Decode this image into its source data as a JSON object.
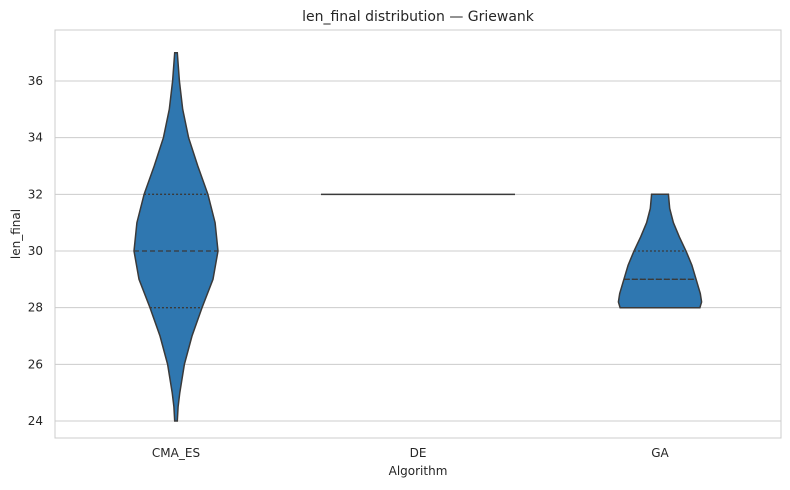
{
  "chart_data": {
    "type": "violin",
    "title": "len_final distribution — Griewank",
    "xlabel": "Algorithm",
    "ylabel": "len_final",
    "categories": [
      "CMA_ES",
      "DE",
      "GA"
    ],
    "ylim": [
      23.4,
      37.8
    ],
    "yticks": [
      24,
      26,
      28,
      30,
      32,
      34,
      36
    ],
    "grid": true,
    "colors": {
      "fill": "#2f77b0",
      "edge": "#3a3a3a",
      "grid": "#cccccc"
    },
    "violins": [
      {
        "category": "CMA_ES",
        "min": 24,
        "max": 37,
        "q1": 28,
        "median": 30,
        "q3": 32,
        "profile": [
          [
            24,
            0.03
          ],
          [
            24.5,
            0.05
          ],
          [
            25,
            0.09
          ],
          [
            26,
            0.2
          ],
          [
            27,
            0.38
          ],
          [
            28,
            0.62
          ],
          [
            29,
            0.88
          ],
          [
            30,
            1.0
          ],
          [
            31,
            0.93
          ],
          [
            32,
            0.76
          ],
          [
            33,
            0.52
          ],
          [
            34,
            0.3
          ],
          [
            35,
            0.16
          ],
          [
            36,
            0.08
          ],
          [
            37,
            0.03
          ]
        ]
      },
      {
        "category": "DE",
        "min": 32,
        "max": 32,
        "q1": 32,
        "median": 32,
        "q3": 32,
        "profile": []
      },
      {
        "category": "GA",
        "min": 28,
        "max": 32,
        "q1": 29,
        "median": 29,
        "q3": 30,
        "profile": [
          [
            28,
            0.95
          ],
          [
            28.2,
            0.99
          ],
          [
            28.5,
            0.96
          ],
          [
            29,
            0.86
          ],
          [
            29.5,
            0.76
          ],
          [
            30,
            0.62
          ],
          [
            30.5,
            0.46
          ],
          [
            31,
            0.32
          ],
          [
            31.5,
            0.23
          ],
          [
            32,
            0.2
          ]
        ]
      }
    ]
  }
}
